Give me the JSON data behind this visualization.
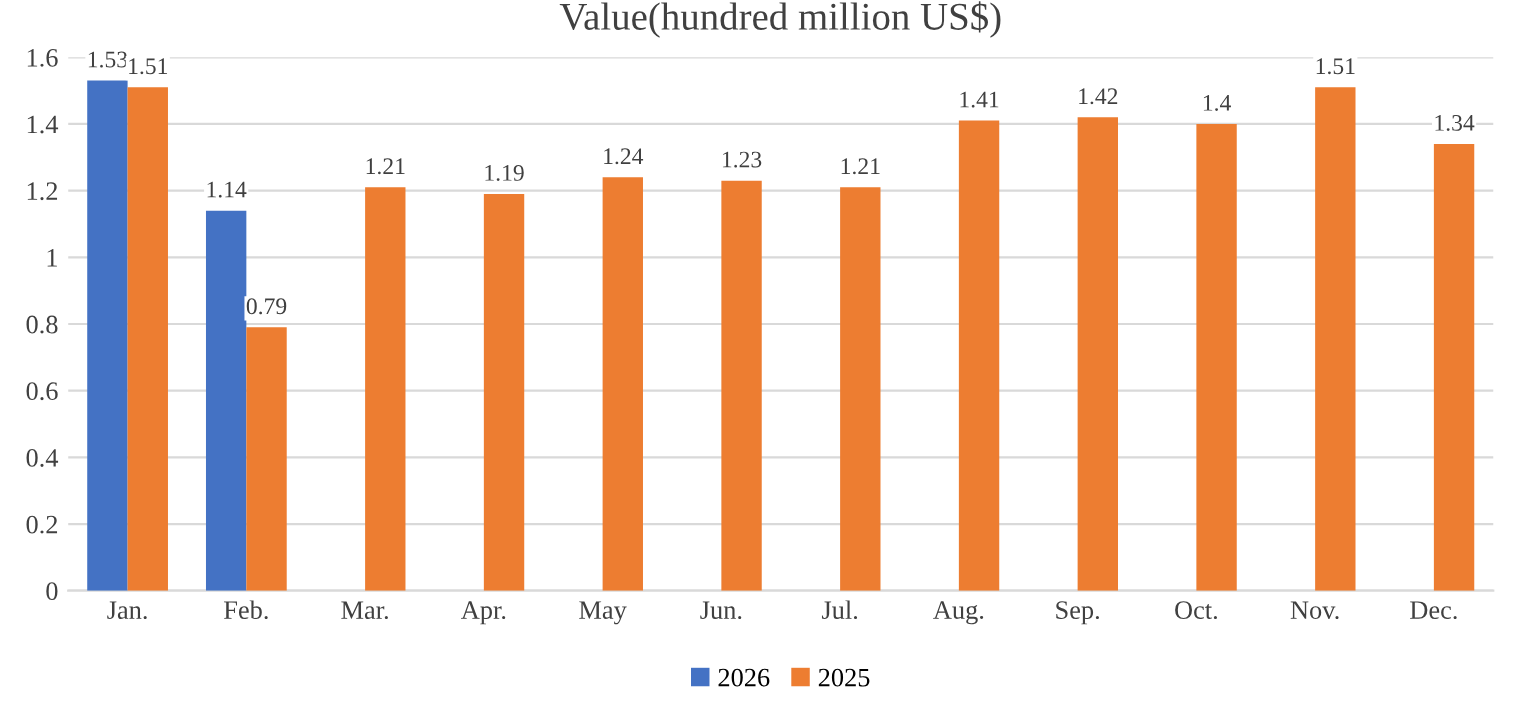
{
  "chart_data": {
    "type": "bar",
    "title": "Value(hundred million US$)",
    "categories": [
      "Jan.",
      "Feb.",
      "Mar.",
      "Apr.",
      "May",
      "Jun.",
      "Jul.",
      "Aug.",
      "Sep.",
      "Oct.",
      "Nov.",
      "Dec."
    ],
    "series": [
      {
        "name": "2026",
        "color": "#4472c4",
        "values": [
          1.53,
          1.14,
          null,
          null,
          null,
          null,
          null,
          null,
          null,
          null,
          null,
          null
        ]
      },
      {
        "name": "2025",
        "color": "#ed7d31",
        "values": [
          1.51,
          0.79,
          1.21,
          1.19,
          1.24,
          1.23,
          1.21,
          1.41,
          1.42,
          1.4,
          1.51,
          1.34
        ]
      }
    ],
    "ylim": [
      0,
      1.6
    ],
    "yticks": [
      0,
      0.2,
      0.4,
      0.6,
      0.8,
      1,
      1.2,
      1.4,
      1.6
    ],
    "grid": "y",
    "legend": "bottom",
    "data_labels": true
  }
}
